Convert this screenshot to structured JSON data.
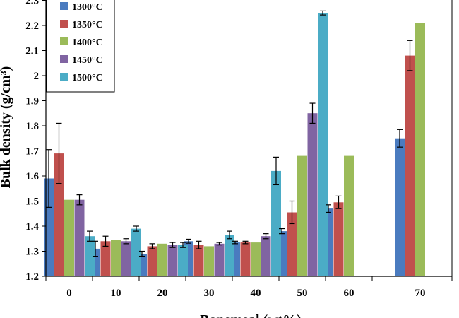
{
  "chart_data": {
    "type": "bar",
    "title": "",
    "xlabel": "Bonemeal (wt%)",
    "ylabel": "Bulk density (g/cm³)",
    "ylim": [
      1.2,
      2.3
    ],
    "yticks": [
      "1.2",
      "1.3",
      "1.4",
      "1.5",
      "1.6",
      "1.7",
      "1.8",
      "1.9",
      "2",
      "2.1",
      "2.2",
      "2.3"
    ],
    "categories": [
      "0",
      "10",
      "20",
      "30",
      "40",
      "50",
      "60",
      "70"
    ],
    "legend_position": "top-left",
    "grid": false,
    "series": [
      {
        "name": "1300°C",
        "color": "#4a7bbf",
        "values": [
          1.59,
          1.31,
          1.29,
          1.34,
          1.335,
          1.38,
          1.47,
          1.75
        ],
        "errors": [
          0.115,
          0.03,
          0.01,
          0.008,
          0.005,
          0.01,
          0.015,
          0.035
        ]
      },
      {
        "name": "1350°C",
        "color": "#c0504d",
        "values": [
          1.69,
          1.34,
          1.32,
          1.325,
          1.335,
          1.455,
          1.495,
          2.08
        ],
        "errors": [
          0.12,
          0.02,
          0.01,
          0.015,
          0.005,
          0.045,
          0.025,
          0.06
        ]
      },
      {
        "name": "1400°C",
        "color": "#9bbb59",
        "values": [
          1.505,
          1.345,
          1.33,
          1.32,
          1.335,
          1.68,
          1.68,
          2.21
        ]
      },
      {
        "name": "1450°C",
        "color": "#8064a2",
        "values": [
          1.505,
          1.34,
          1.325,
          1.33,
          1.36,
          1.85,
          null,
          null
        ],
        "errors": [
          0.02,
          0.01,
          0.01,
          0.005,
          0.01,
          0.04,
          null,
          null
        ]
      },
      {
        "name": "1500°C",
        "color": "#4bacc6",
        "values": [
          1.36,
          1.39,
          1.325,
          1.365,
          1.62,
          2.25,
          null,
          null
        ],
        "errors": [
          0.02,
          0.01,
          0.01,
          0.015,
          0.055,
          0.008,
          null,
          null
        ]
      }
    ]
  }
}
